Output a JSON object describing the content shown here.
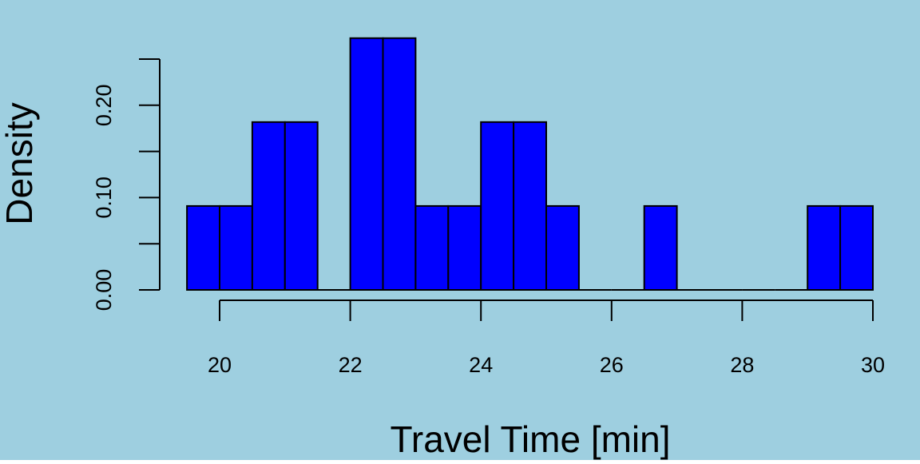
{
  "chart_data": {
    "type": "bar",
    "subtype": "histogram",
    "xlabel": "Travel Time [min]",
    "ylabel": "Density",
    "bin_edges": [
      19.5,
      20.0,
      20.5,
      21.0,
      21.5,
      22.0,
      22.5,
      23.0,
      23.5,
      24.0,
      24.5,
      25.0,
      25.5,
      26.0,
      26.5,
      27.0,
      27.5,
      28.0,
      28.5,
      29.0,
      29.5,
      30.0
    ],
    "values": [
      0.0909,
      0.0909,
      0.1818,
      0.1818,
      0.0,
      0.2727,
      0.2727,
      0.0909,
      0.0909,
      0.1818,
      0.1818,
      0.0909,
      0.0,
      0.0,
      0.0909,
      0.0,
      0.0,
      0.0,
      0.0,
      0.0909,
      0.0909
    ],
    "xlim": [
      19.5,
      30.0
    ],
    "ylim": [
      0,
      0.25
    ],
    "x_ticks": [
      20,
      22,
      24,
      26,
      28,
      30
    ],
    "x_tick_labels": [
      "20",
      "22",
      "24",
      "26",
      "28",
      "30"
    ],
    "y_ticks": [
      0.0,
      0.05,
      0.1,
      0.15,
      0.2,
      0.25
    ],
    "y_tick_labels": [
      "0.00",
      "",
      "0.10",
      "",
      "0.20",
      ""
    ],
    "colors": {
      "background": "#9ecfe0",
      "bar_fill": "#0000ff",
      "bar_stroke": "#000000",
      "axis": "#000000"
    },
    "grid": false,
    "legend": "none"
  }
}
